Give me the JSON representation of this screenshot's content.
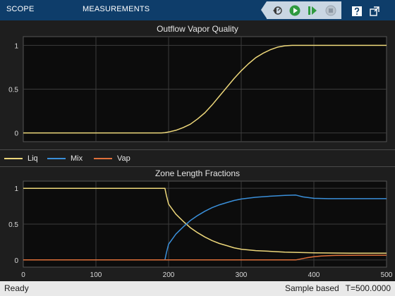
{
  "toolbar": {
    "tabs": [
      {
        "label": "SCOPE"
      },
      {
        "label": "MEASUREMENTS"
      }
    ],
    "controls": [
      {
        "icon": "step-back-icon"
      },
      {
        "icon": "run-icon"
      },
      {
        "icon": "step-forward-icon"
      },
      {
        "icon": "stop-icon"
      },
      {
        "icon": "help-icon"
      },
      {
        "icon": "undock-icon"
      }
    ]
  },
  "colors": {
    "background": "#1e1e1e",
    "axes": "#0c0c0c",
    "grid": "#3c3c3c",
    "liq": "#edd77a",
    "mix": "#3a8fd9",
    "vap": "#e0703a",
    "toolbar": "#0e3d6a"
  },
  "legend": {
    "items": [
      {
        "label": "Liq",
        "color": "#edd77a"
      },
      {
        "label": "Mix",
        "color": "#3a8fd9"
      },
      {
        "label": "Vap",
        "color": "#e0703a"
      }
    ]
  },
  "chart_data": [
    {
      "type": "line",
      "title": "Outflow Vapor Quality",
      "xlim": [
        0,
        500
      ],
      "ylim": [
        -0.1,
        1.1
      ],
      "yticks": [
        0,
        0.5,
        1
      ],
      "ytick_labels": [
        "0",
        "0.5",
        "1"
      ],
      "xticks": [
        0,
        100,
        200,
        300,
        400,
        500
      ],
      "show_x_tick_labels": false,
      "grid": true,
      "series": [
        {
          "color": "#edd77a",
          "x": [
            0,
            190,
            195,
            200,
            210,
            220,
            230,
            240,
            250,
            260,
            270,
            280,
            290,
            300,
            310,
            320,
            330,
            340,
            350,
            360,
            370,
            378,
            400,
            450,
            500
          ],
          "y": [
            0,
            0,
            0.003,
            0.01,
            0.03,
            0.06,
            0.1,
            0.16,
            0.23,
            0.32,
            0.42,
            0.52,
            0.62,
            0.71,
            0.79,
            0.86,
            0.91,
            0.95,
            0.98,
            0.995,
            1,
            1,
            1,
            1,
            1
          ]
        }
      ]
    },
    {
      "type": "line",
      "title": "Zone Length Fractions",
      "xlim": [
        0,
        500
      ],
      "ylim": [
        -0.1,
        1.1
      ],
      "yticks": [
        0,
        0.5,
        1
      ],
      "ytick_labels": [
        "0",
        "0.5",
        "1"
      ],
      "xticks": [
        0,
        100,
        200,
        300,
        400,
        500
      ],
      "xtick_labels": [
        "0",
        "100",
        "200",
        "300",
        "400",
        "500"
      ],
      "grid": true,
      "series": [
        {
          "name": "Liq",
          "color": "#edd77a",
          "x": [
            0,
            195,
            197,
            200,
            205,
            210,
            220,
            230,
            240,
            250,
            260,
            270,
            280,
            290,
            300,
            320,
            340,
            360,
            380,
            400,
            450,
            500
          ],
          "y": [
            1,
            1,
            0.9,
            0.78,
            0.71,
            0.64,
            0.54,
            0.45,
            0.38,
            0.32,
            0.27,
            0.23,
            0.2,
            0.17,
            0.15,
            0.13,
            0.12,
            0.11,
            0.105,
            0.1,
            0.095,
            0.095
          ]
        },
        {
          "name": "Mix",
          "color": "#3a8fd9",
          "x": [
            0,
            195,
            197,
            200,
            205,
            210,
            220,
            230,
            240,
            250,
            260,
            270,
            280,
            290,
            300,
            320,
            340,
            360,
            375,
            385,
            400,
            420,
            450,
            500
          ],
          "y": [
            0,
            0,
            0.1,
            0.22,
            0.29,
            0.36,
            0.46,
            0.55,
            0.62,
            0.68,
            0.73,
            0.77,
            0.8,
            0.83,
            0.85,
            0.875,
            0.89,
            0.9,
            0.905,
            0.88,
            0.86,
            0.855,
            0.855,
            0.855
          ]
        },
        {
          "name": "Vap",
          "color": "#e0703a",
          "x": [
            0,
            375,
            380,
            390,
            400,
            410,
            420,
            430,
            450,
            500
          ],
          "y": [
            0,
            0,
            0.01,
            0.03,
            0.045,
            0.055,
            0.06,
            0.063,
            0.065,
            0.066
          ]
        }
      ]
    }
  ],
  "status": {
    "ready": "Ready",
    "mode": "Sample based",
    "time": "T=500.0000"
  }
}
